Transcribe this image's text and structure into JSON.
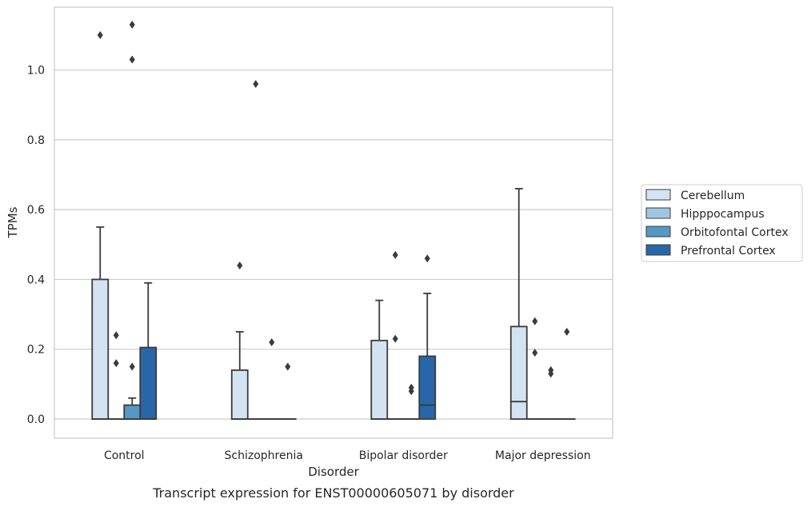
{
  "chart_data": {
    "type": "boxplot",
    "caption": "Transcript expression for ENST00000605071 by disorder",
    "xlabel": "Disorder",
    "ylabel": "TPMs",
    "ylim": [
      -0.055,
      1.18
    ],
    "yticks": [
      0.0,
      0.2,
      0.4,
      0.6,
      0.8,
      1.0
    ],
    "ytick_labels": [
      "0.0",
      "0.2",
      "0.4",
      "0.6",
      "0.8",
      "1.0"
    ],
    "grid": "horizontal",
    "legend_position": "right",
    "categories": [
      "Control",
      "Schizophrenia",
      "Bipolar disorder",
      "Major depression"
    ],
    "series": [
      {
        "name": "Cerebellum",
        "color": "#d4e3f1",
        "boxes": [
          {
            "whisker_low": 0,
            "q1": 0,
            "median": 0,
            "q3": 0.4,
            "whisker_high": 0.55,
            "outliers": [
              1.1
            ]
          },
          {
            "whisker_low": 0,
            "q1": 0,
            "median": 0,
            "q3": 0.14,
            "whisker_high": 0.25,
            "outliers": [
              0.44
            ]
          },
          {
            "whisker_low": 0,
            "q1": 0,
            "median": 0,
            "q3": 0.225,
            "whisker_high": 0.34,
            "outliers": []
          },
          {
            "whisker_low": 0,
            "q1": 0,
            "median": 0.05,
            "q3": 0.265,
            "whisker_high": 0.66,
            "outliers": []
          }
        ]
      },
      {
        "name": "Hipppocampus",
        "color": "#9fc6df",
        "boxes": [
          {
            "whisker_low": 0,
            "q1": 0,
            "median": 0,
            "q3": 0,
            "whisker_high": 0,
            "outliers": [
              0.24,
              0.16
            ]
          },
          {
            "whisker_low": 0,
            "q1": 0,
            "median": 0,
            "q3": 0,
            "whisker_high": 0,
            "outliers": [
              0.96
            ]
          },
          {
            "whisker_low": 0,
            "q1": 0,
            "median": 0,
            "q3": 0,
            "whisker_high": 0,
            "outliers": [
              0.47,
              0.23
            ]
          },
          {
            "whisker_low": 0,
            "q1": 0,
            "median": 0,
            "q3": 0,
            "whisker_high": 0,
            "outliers": [
              0.28,
              0.19
            ]
          }
        ]
      },
      {
        "name": "Orbitofontal Cortex",
        "color": "#5498c6",
        "boxes": [
          {
            "whisker_low": 0,
            "q1": 0,
            "median": 0,
            "q3": 0.04,
            "whisker_high": 0.06,
            "outliers": [
              1.13,
              1.03,
              0.15
            ]
          },
          {
            "whisker_low": 0,
            "q1": 0,
            "median": 0,
            "q3": 0,
            "whisker_high": 0,
            "outliers": [
              0.22
            ]
          },
          {
            "whisker_low": 0,
            "q1": 0,
            "median": 0,
            "q3": 0,
            "whisker_high": 0,
            "outliers": [
              0.09,
              0.08
            ]
          },
          {
            "whisker_low": 0,
            "q1": 0,
            "median": 0,
            "q3": 0,
            "whisker_high": 0,
            "outliers": [
              0.14,
              0.13
            ]
          }
        ]
      },
      {
        "name": "Prefrontal Cortex",
        "color": "#2767a9",
        "boxes": [
          {
            "whisker_low": 0,
            "q1": 0,
            "median": 0,
            "q3": 0.205,
            "whisker_high": 0.39,
            "outliers": []
          },
          {
            "whisker_low": 0,
            "q1": 0,
            "median": 0,
            "q3": 0,
            "whisker_high": 0,
            "outliers": [
              0.15
            ]
          },
          {
            "whisker_low": 0,
            "q1": 0,
            "median": 0.04,
            "q3": 0.18,
            "whisker_high": 0.36,
            "outliers": [
              0.46
            ]
          },
          {
            "whisker_low": 0,
            "q1": 0,
            "median": 0,
            "q3": 0,
            "whisker_high": 0,
            "outliers": [
              0.25
            ]
          }
        ]
      }
    ]
  }
}
